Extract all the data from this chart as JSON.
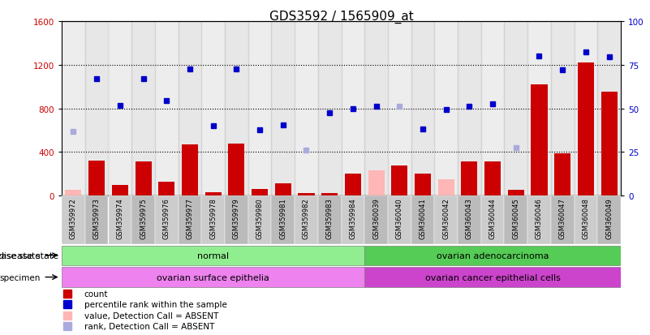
{
  "title": "GDS3592 / 1565909_at",
  "samples": [
    "GSM359972",
    "GSM359973",
    "GSM359974",
    "GSM359975",
    "GSM359976",
    "GSM359977",
    "GSM359978",
    "GSM359979",
    "GSM359980",
    "GSM359981",
    "GSM359982",
    "GSM359983",
    "GSM359984",
    "GSM360039",
    "GSM360040",
    "GSM360041",
    "GSM360042",
    "GSM360043",
    "GSM360044",
    "GSM360045",
    "GSM360046",
    "GSM360047",
    "GSM360048",
    "GSM360049"
  ],
  "count_values": [
    50,
    320,
    100,
    310,
    130,
    470,
    30,
    480,
    60,
    110,
    20,
    20,
    200,
    230,
    280,
    200,
    150,
    310,
    310,
    50,
    1020,
    390,
    1220,
    950
  ],
  "count_absent": [
    true,
    false,
    false,
    false,
    false,
    false,
    false,
    false,
    false,
    false,
    false,
    false,
    false,
    true,
    false,
    false,
    true,
    false,
    false,
    false,
    false,
    false,
    false,
    false
  ],
  "rank_values": [
    590,
    1070,
    830,
    1070,
    870,
    1160,
    640,
    1160,
    600,
    650,
    420,
    760,
    800,
    820,
    820,
    610,
    790,
    820,
    840,
    440,
    1280,
    1150,
    1320,
    1270
  ],
  "rank_absent": [
    true,
    false,
    false,
    false,
    false,
    false,
    false,
    false,
    false,
    false,
    true,
    false,
    false,
    false,
    true,
    false,
    false,
    false,
    false,
    true,
    false,
    false,
    false,
    false
  ],
  "ylim_left": [
    0,
    1600
  ],
  "yticks_left": [
    0,
    400,
    800,
    1200,
    1600
  ],
  "yticks_right": [
    0,
    25,
    50,
    75,
    100
  ],
  "disease_state_groups": [
    {
      "label": "normal",
      "start": 0,
      "end": 13,
      "color": "#90EE90"
    },
    {
      "label": "ovarian adenocarcinoma",
      "start": 13,
      "end": 24,
      "color": "#55CC55"
    }
  ],
  "specimen_groups": [
    {
      "label": "ovarian surface epithelia",
      "start": 0,
      "end": 13,
      "color": "#EE82EE"
    },
    {
      "label": "ovarian cancer epithelial cells",
      "start": 13,
      "end": 24,
      "color": "#CC44CC"
    }
  ],
  "bar_color_present": "#CC0000",
  "bar_color_absent": "#FFB6B6",
  "dot_color_present": "#0000CC",
  "dot_color_absent": "#AAAADD",
  "col_bg_light": "#CCCCCC",
  "col_bg_dark": "#BBBBBB",
  "legend_items": [
    {
      "label": "count",
      "color": "#CC0000"
    },
    {
      "label": "percentile rank within the sample",
      "color": "#0000CC"
    },
    {
      "label": "value, Detection Call = ABSENT",
      "color": "#FFB6B6"
    },
    {
      "label": "rank, Detection Call = ABSENT",
      "color": "#AAAADD"
    }
  ]
}
